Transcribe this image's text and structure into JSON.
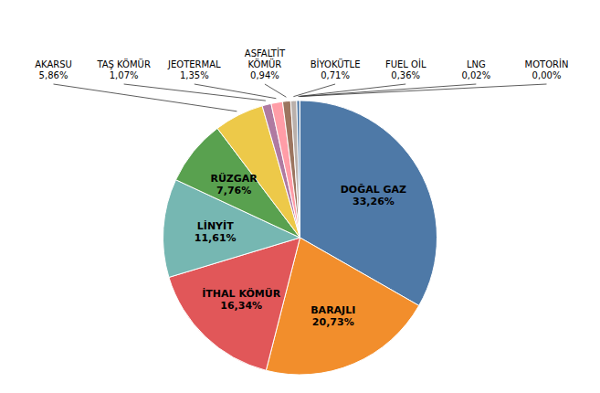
{
  "chart_data": {
    "type": "pie",
    "categories": [
      "DOĞAL GAZ",
      "BARAJLI",
      "İTHAL KÖMÜR",
      "LİNYİT",
      "RÜZGAR",
      "AKARSU",
      "TAŞ KÖMÜR",
      "JEOTERMAL",
      "ASFALTİT\nKÖMÜR",
      "BİYOKÜTLE",
      "FUEL OİL",
      "LNG",
      "MOTORİN"
    ],
    "values": [
      33.26,
      20.73,
      16.34,
      11.61,
      7.76,
      5.86,
      1.07,
      1.35,
      0.94,
      0.71,
      0.36,
      0.02,
      0.0
    ],
    "value_labels": [
      "33,26%",
      "20,73%",
      "16,34%",
      "11,61%",
      "7,76%",
      "5,86%",
      "1,07%",
      "1,35%",
      "0,94%",
      "0,71%",
      "0,36%",
      "0,02%",
      "0,00%"
    ],
    "data_labels": true
  }
}
